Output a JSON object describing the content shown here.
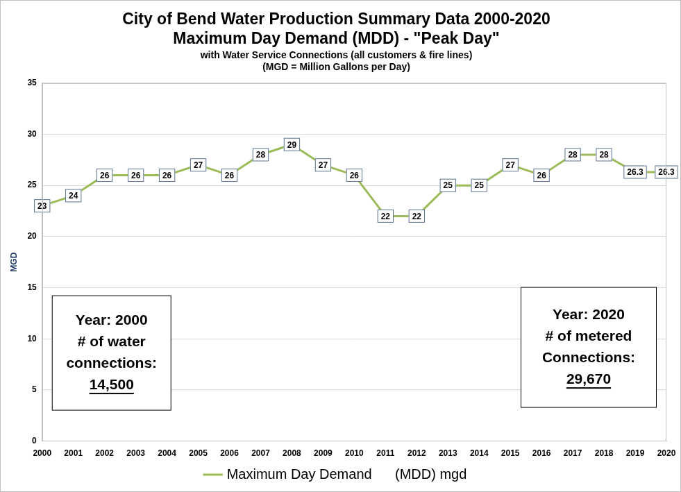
{
  "chart_data": {
    "type": "line",
    "title": [
      "City of Bend Water Production Summary Data 2000-2020",
      "Maximum Day Demand (MDD) - \"Peak Day\""
    ],
    "subtitle": [
      "with Water Service Connections (all customers & fire lines)",
      "(MGD = Million Gallons per Day)"
    ],
    "y_label": "MGD",
    "categories": [
      "2000",
      "2001",
      "2002",
      "2003",
      "2004",
      "2005",
      "2006",
      "2007",
      "2008",
      "2009",
      "2010",
      "2011",
      "2012",
      "2013",
      "2014",
      "2015",
      "2016",
      "2017",
      "2018",
      "2019",
      "2020"
    ],
    "series": [
      {
        "name": "Maximum Day Demand      (MDD) mgd",
        "color": "#9bbb59",
        "values": [
          23,
          24,
          26,
          26,
          26,
          27,
          26,
          28,
          29,
          27,
          26,
          22,
          22,
          25,
          25,
          27,
          26,
          28,
          28,
          26.3,
          26.3
        ]
      }
    ],
    "ylim": [
      0,
      35
    ],
    "yticks": [
      0,
      5,
      10,
      15,
      20,
      25,
      30,
      35
    ],
    "grid": true,
    "legend": "bottom",
    "data_labels": true,
    "annotations": [
      {
        "lines": [
          "Year: 2000",
          "# of water",
          "connections:",
          "14,500"
        ]
      },
      {
        "lines": [
          "Year: 2020",
          "# of metered",
          "Connections:",
          "29,670"
        ]
      }
    ]
  }
}
